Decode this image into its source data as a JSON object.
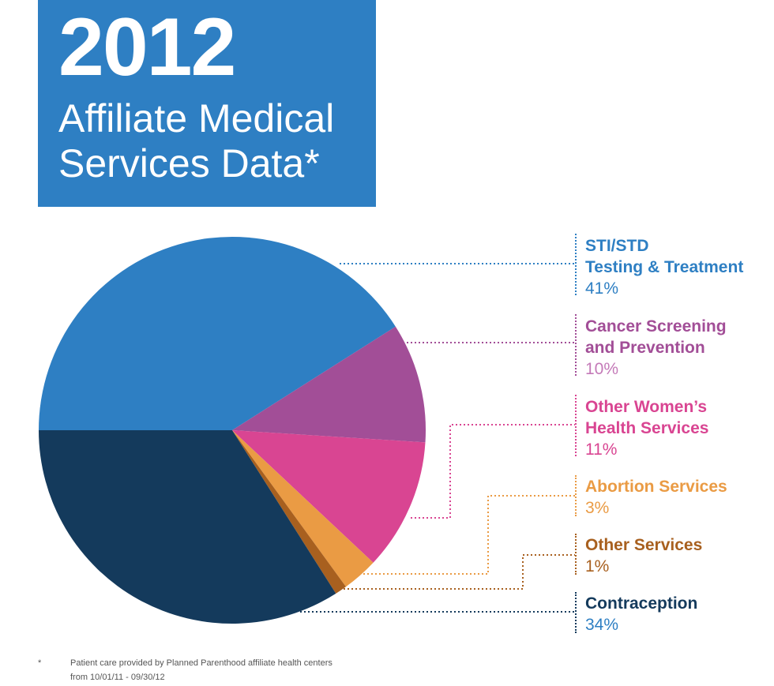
{
  "header": {
    "year": "2012",
    "subtitle_line1": "Affiliate Medical",
    "subtitle_line2": "Services Data*"
  },
  "chart_data": {
    "type": "pie",
    "title": "2012 Affiliate Medical Services Data*",
    "start_angle_deg": 180,
    "direction": "clockwise",
    "slices": [
      {
        "label": "STI/STD Testing & Treatment",
        "value": 41,
        "color": "#2e7fc3"
      },
      {
        "label": "Cancer Screening and Prevention",
        "value": 10,
        "color": "#a24e97"
      },
      {
        "label": "Other Women's Health Services",
        "value": 11,
        "color": "#d94592"
      },
      {
        "label": "Abortion Services",
        "value": 3,
        "color": "#ea9b44"
      },
      {
        "label": "Other Services",
        "value": 1,
        "color": "#a8601f"
      },
      {
        "label": "Contraception",
        "value": 34,
        "color": "#143a5c"
      }
    ]
  },
  "legend": [
    {
      "name": "STI/STD\nTesting & Treatment",
      "pct": "41%",
      "color": "#2e7fc3",
      "pct_color": "#2e7fc3"
    },
    {
      "name": "Cancer Screening\nand Prevention",
      "pct": "10%",
      "color": "#a24e97",
      "pct_color": "#c47ab8"
    },
    {
      "name": "Other Women’s\nHealth Services",
      "pct": "11%",
      "color": "#d94592",
      "pct_color": "#d94592"
    },
    {
      "name": "Abortion Services",
      "pct": "3%",
      "color": "#ea9b44",
      "pct_color": "#ea9b44"
    },
    {
      "name": "Other Services",
      "pct": "1%",
      "color": "#a8601f",
      "pct_color": "#a8601f"
    },
    {
      "name": "Contraception",
      "pct": "34%",
      "color": "#143a5c",
      "pct_color": "#2e7fc3"
    }
  ],
  "footnote": {
    "marker": "*",
    "line1": "Patient care provided by Planned Parenthood affiliate health centers",
    "line2": "from 10/01/11 - 09/30/12"
  }
}
